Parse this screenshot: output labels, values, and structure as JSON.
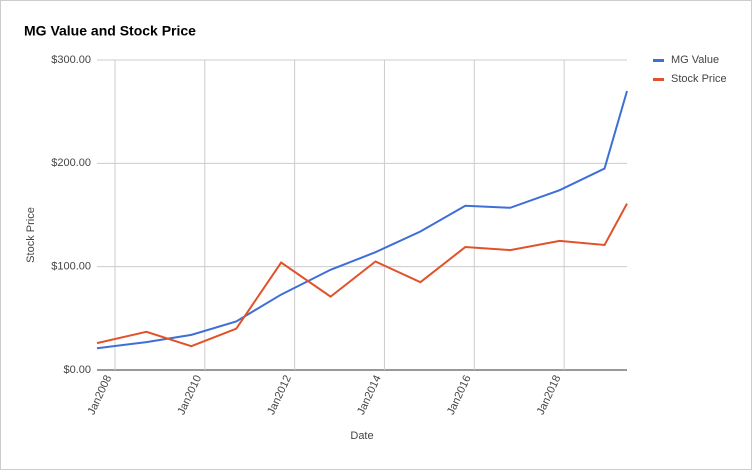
{
  "chart_data": {
    "type": "line",
    "title": "MG Value and Stock Price",
    "x_label": "Date",
    "y_label": "Stock Price",
    "x": [
      2007.6,
      2008.7,
      2009.7,
      2010.7,
      2011.7,
      2012.8,
      2013.8,
      2014.8,
      2015.8,
      2016.8,
      2017.9,
      2018.9,
      2019.4
    ],
    "series": [
      {
        "name": "MG Value",
        "color": "#3d6fd6",
        "values": [
          21,
          27,
          34,
          47,
          73,
          97,
          114,
          134,
          159,
          157,
          174,
          195,
          270
        ]
      },
      {
        "name": "Stock Price",
        "color": "#e2522a",
        "values": [
          26,
          37,
          23,
          40,
          104,
          71,
          105,
          85,
          119,
          116,
          125,
          121,
          161
        ]
      }
    ],
    "xlim": [
      2007.6,
      2019.4
    ],
    "xticks": [
      {
        "value": 2008,
        "label": "Jan2008"
      },
      {
        "value": 2010,
        "label": "Jan2010"
      },
      {
        "value": 2012,
        "label": "Jan2012"
      },
      {
        "value": 2014,
        "label": "Jan2014"
      },
      {
        "value": 2016,
        "label": "Jan2016"
      },
      {
        "value": 2018,
        "label": "Jan2018"
      }
    ],
    "ylim": [
      0,
      300
    ],
    "yticks": [
      {
        "value": 0,
        "label": "$0.00"
      },
      {
        "value": 100,
        "label": "$100.00"
      },
      {
        "value": 200,
        "label": "$200.00"
      },
      {
        "value": 300,
        "label": "$300.00"
      }
    ],
    "grid": true,
    "legend": "right"
  }
}
